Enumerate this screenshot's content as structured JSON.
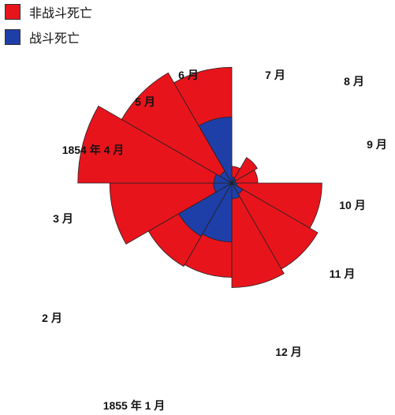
{
  "legend": {
    "items": [
      {
        "label": "非战斗死亡",
        "color": "#e8141c"
      },
      {
        "label": "战斗死亡",
        "color": "#1f3fa8"
      }
    ]
  },
  "chart_data": {
    "type": "polar-area",
    "title": "",
    "center_label": "",
    "series": [
      {
        "name": "非战斗死亡",
        "color": "#e8141c"
      },
      {
        "name": "战斗死亡",
        "color": "#1f3fa8"
      }
    ],
    "months": [
      {
        "label": "1854 年 4 月",
        "nonbattle": 3.7,
        "battle": 0.5
      },
      {
        "label": "5 月",
        "nonbattle": 11.5,
        "battle": 0.3
      },
      {
        "label": "6 月",
        "nonbattle": 9,
        "battle": 0.2
      },
      {
        "label": "7 月",
        "nonbattle": 108,
        "battle": 0.4
      },
      {
        "label": "8 月",
        "nonbattle": 131,
        "battle": 2.1
      },
      {
        "label": "9 月",
        "nonbattle": 145,
        "battle": 3.3
      },
      {
        "label": "10 月",
        "nonbattle": 118,
        "battle": 46
      },
      {
        "label": "11 月",
        "nonbattle": 123,
        "battle": 50
      },
      {
        "label": "12 月",
        "nonbattle": 198,
        "battle": 4.5
      },
      {
        "label": "1855 年 1 月",
        "nonbattle": 315,
        "battle": 4.2
      },
      {
        "label": "2 月",
        "nonbattle": 215,
        "battle": 2.5
      },
      {
        "label": "3 月",
        "nonbattle": 178,
        "battle": 58
      }
    ]
  }
}
